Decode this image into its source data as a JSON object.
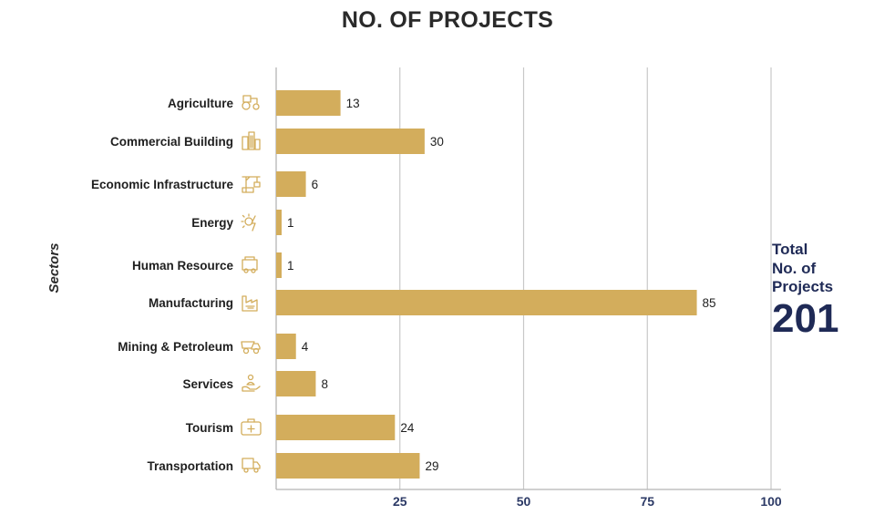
{
  "title": "NO. OF PROJECTS",
  "total": {
    "label_lines": [
      "Total",
      "No. of",
      "Projects"
    ],
    "value": "201"
  },
  "colors": {
    "bar": "#d3ad5c",
    "icon": "#d3ad5c",
    "grid": "#c8c8c8",
    "axis": "#b5b5b5",
    "tick_text": "#2c3a66",
    "total_text": "#1f2a56"
  },
  "chart_data": {
    "type": "bar",
    "orientation": "horizontal",
    "title": "NO. OF PROJECTS",
    "ylabel": "Sectors",
    "xlabel": "",
    "categories": [
      "Agriculture",
      "Commercial Building",
      "Economic Infrastructure",
      "Energy",
      "Human Resource",
      "Manufacturing",
      "Mining & Petroleum",
      "Services",
      "Tourism",
      "Transportation"
    ],
    "icons": [
      "tractor-icon",
      "buildings-icon",
      "construction-crane-icon",
      "energy-icon",
      "hr-truck-icon",
      "factory-icon",
      "mining-truck-icon",
      "services-hand-icon",
      "first-aid-kit-icon",
      "delivery-truck-icon"
    ],
    "values": [
      13,
      30,
      6,
      1,
      1,
      85,
      4,
      8,
      24,
      29
    ],
    "xticks": [
      25,
      50,
      75,
      100
    ],
    "grid": true
  }
}
